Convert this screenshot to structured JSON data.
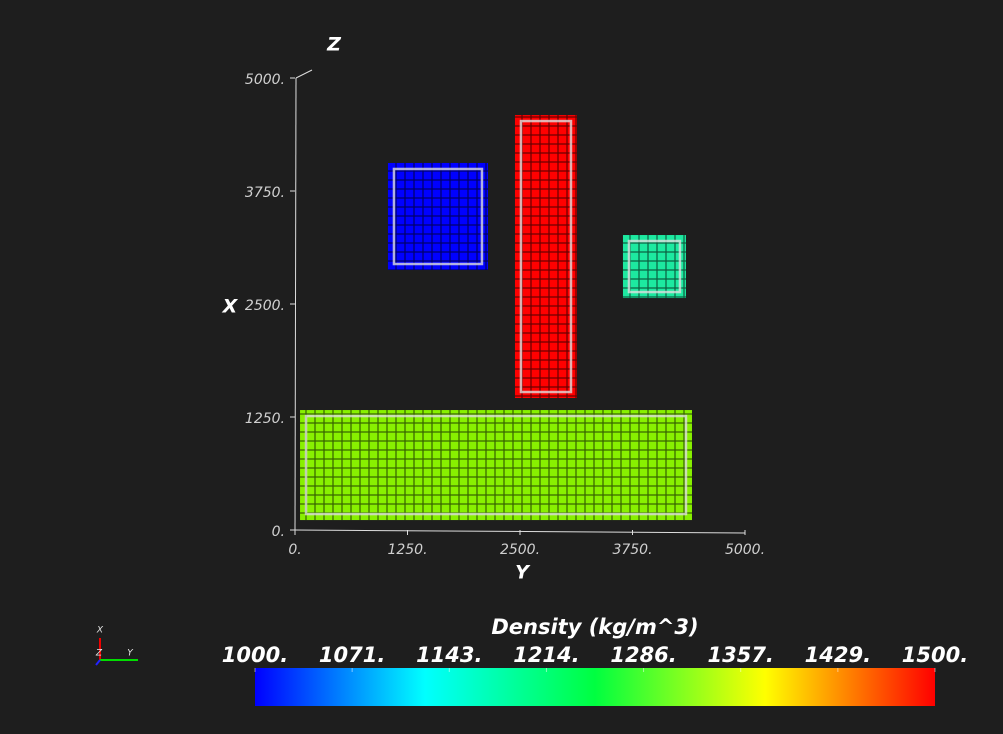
{
  "chart_data": {
    "type": "voxel",
    "x_label": "Y",
    "y_label": "X",
    "z_label": "Z",
    "xlim": [
      0,
      5000
    ],
    "ylim": [
      0,
      5000
    ],
    "xticks": [
      {
        "value": 0,
        "label": "0."
      },
      {
        "value": 1250,
        "label": "1250."
      },
      {
        "value": 2500,
        "label": "2500."
      },
      {
        "value": 3750,
        "label": "3750."
      },
      {
        "value": 5000,
        "label": "5000."
      }
    ],
    "yticks": [
      {
        "value": 0,
        "label": "0."
      },
      {
        "value": 1250,
        "label": "1250."
      },
      {
        "value": 2500,
        "label": "2500."
      },
      {
        "value": 3750,
        "label": "3750."
      },
      {
        "value": 5000,
        "label": "5000."
      }
    ],
    "blocks": [
      {
        "color": "#0000ff",
        "x_range": [
          1033,
          2144
        ],
        "y_range": [
          2876,
          4060
        ]
      },
      {
        "color": "#ff0000",
        "x_range": [
          2444,
          3133
        ],
        "y_range": [
          1460,
          4590
        ]
      },
      {
        "color": "#1de9a0",
        "x_range": [
          3644,
          4344
        ],
        "y_range": [
          2566,
          3263
        ]
      },
      {
        "color": "#88f000",
        "x_range": [
          56,
          4411
        ],
        "y_range": [
          110,
          1327
        ]
      }
    ],
    "colorbar": {
      "title": "Density (kg/m^3)",
      "lim": [
        1000,
        1500
      ],
      "colors": [
        "#0000ff",
        "#00ffff",
        "#00ff40",
        "#ffff00",
        "#ff0000"
      ],
      "ticks": [
        {
          "value": 1000,
          "label": "1000."
        },
        {
          "value": 1071.43,
          "label": "1071."
        },
        {
          "value": 1142.86,
          "label": "1143."
        },
        {
          "value": 1214.29,
          "label": "1214."
        },
        {
          "value": 1285.71,
          "label": "1286."
        },
        {
          "value": 1357.14,
          "label": "1357."
        },
        {
          "value": 1428.57,
          "label": "1429."
        },
        {
          "value": 1500,
          "label": "1500."
        }
      ]
    },
    "orientation_axes": {
      "x": "X",
      "y": "Y",
      "z": "Z"
    }
  }
}
